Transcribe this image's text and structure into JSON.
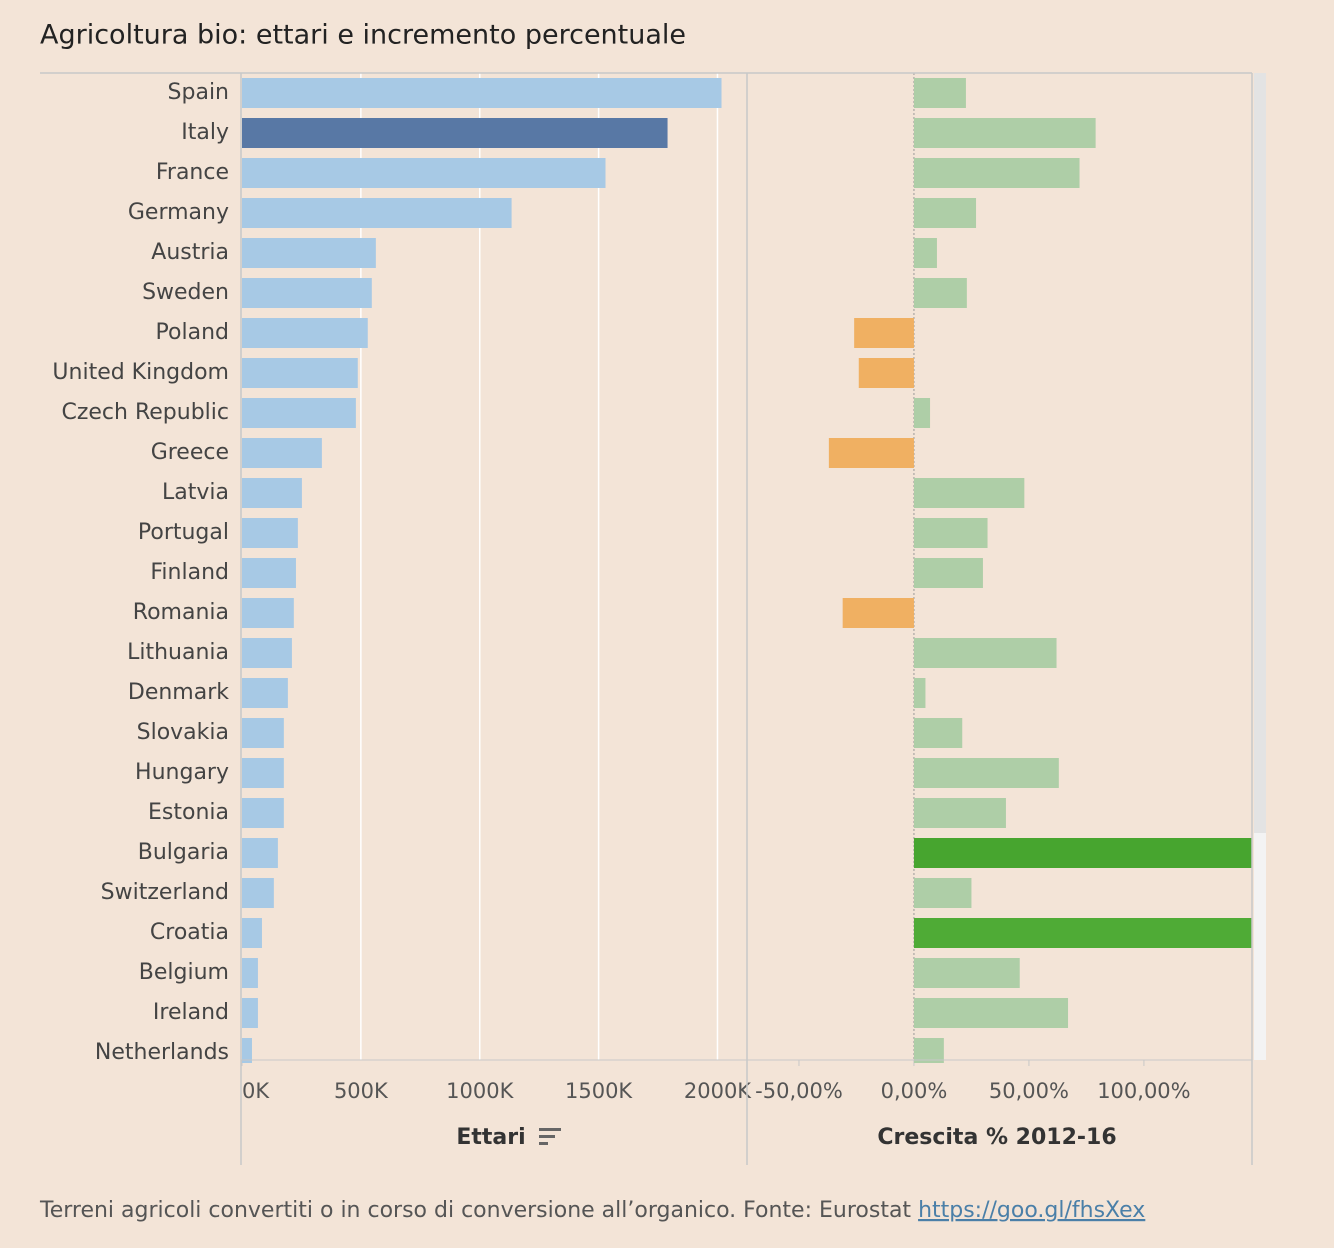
{
  "title": "Agricoltura bio: ettari e incremento percentuale",
  "footer": {
    "text": "Terreni agricoli convertiti o in corso di conversione all’organico. Fonte: Eurostat",
    "link": "https://goo.gl/fhsXex"
  },
  "chart_data": [
    {
      "type": "bar",
      "orientation": "horizontal",
      "x_label": "Ettari",
      "categories": [
        "Spain",
        "Italy",
        "France",
        "Germany",
        "Austria",
        "Sweden",
        "Poland",
        "United Kingdom",
        "Czech Republic",
        "Greece",
        "Latvia",
        "Portugal",
        "Finland",
        "Romania",
        "Lithuania",
        "Denmark",
        "Slovakia",
        "Hungary",
        "Estonia",
        "Bulgaria",
        "Switzerland",
        "Croatia",
        "Belgium",
        "Ireland",
        "Netherlands"
      ],
      "values": [
        2017000,
        1790000,
        1529000,
        1134000,
        563000,
        546000,
        529000,
        487000,
        479000,
        336000,
        252000,
        235000,
        227000,
        218000,
        210000,
        193000,
        176000,
        176000,
        176000,
        151000,
        134000,
        84000,
        67000,
        67000,
        42000
      ],
      "colors": [
        "#a7c9e5",
        "#5878a5",
        "#a7c9e5",
        "#a7c9e5",
        "#a7c9e5",
        "#a7c9e5",
        "#a7c9e5",
        "#a7c9e5",
        "#a7c9e5",
        "#a7c9e5",
        "#a7c9e5",
        "#a7c9e5",
        "#a7c9e5",
        "#a7c9e5",
        "#a7c9e5",
        "#a7c9e5",
        "#a7c9e5",
        "#a7c9e5",
        "#a7c9e5",
        "#a7c9e5",
        "#a7c9e5",
        "#a7c9e5",
        "#a7c9e5",
        "#a7c9e5",
        "#a7c9e5"
      ],
      "xlim": [
        0,
        2120000
      ],
      "xticks": [
        {
          "value": 0,
          "label": "0K"
        },
        {
          "value": 500000,
          "label": "500K"
        },
        {
          "value": 1000000,
          "label": "1000K"
        },
        {
          "value": 1500000,
          "label": "1500K"
        },
        {
          "value": 2000000,
          "label": "2000K"
        }
      ],
      "grid": true
    },
    {
      "type": "bar",
      "orientation": "horizontal",
      "x_label": "Crescita % 2012-16",
      "values": [
        22.6,
        79,
        72,
        27,
        10,
        23,
        -26,
        -24,
        7,
        -37,
        48,
        32,
        30,
        -31,
        62,
        5,
        21,
        63,
        40,
        150,
        25,
        150,
        46,
        67,
        13
      ],
      "colors": [
        "#aecea7",
        "#aecea7",
        "#aecea7",
        "#aecea7",
        "#aecea7",
        "#aecea7",
        "#f0b062",
        "#f0b062",
        "#aecea7",
        "#f0b062",
        "#aecea7",
        "#aecea7",
        "#aecea7",
        "#f0b062",
        "#aecea7",
        "#aecea7",
        "#aecea7",
        "#aecea7",
        "#aecea7",
        "#47a52f",
        "#aecea7",
        "#4fab36",
        "#aecea7",
        "#aecea7",
        "#aecea7"
      ],
      "xlim": [
        -72.6,
        147
      ],
      "xticks": [
        {
          "value": -50,
          "label": "-50,00%"
        },
        {
          "value": 0,
          "label": "0,00%"
        },
        {
          "value": 50,
          "label": "50,00%"
        },
        {
          "value": 100,
          "label": "100,00%"
        }
      ],
      "grid": false
    }
  ]
}
